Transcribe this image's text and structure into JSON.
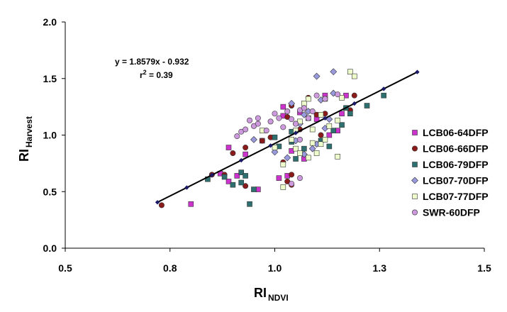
{
  "chart_data": {
    "type": "scatter",
    "xlabel": {
      "main": "RI",
      "sub": "NDVI"
    },
    "ylabel": {
      "main": "RI",
      "sub": "Harvest"
    },
    "xlim": [
      0.5,
      1.5
    ],
    "ylim": [
      0.0,
      2.0
    ],
    "x_ticks": [
      "0.5",
      "0.8",
      "1.0",
      "1.3",
      "1.5"
    ],
    "x_tick_values": [
      0.5,
      0.75,
      1.0,
      1.25,
      1.5
    ],
    "y_ticks": [
      "0.0",
      "0.5",
      "1.0",
      "1.5",
      "2.0"
    ],
    "y_tick_values": [
      0.0,
      0.5,
      1.0,
      1.5,
      2.0
    ],
    "grid": false,
    "legend_position": "right",
    "annotations": {
      "equation": "y = 1.8579x - 0.932",
      "r2_prefix": "r",
      "r2_sup": "2",
      "r2_suffix": " = 0.39"
    },
    "trendline": {
      "slope": 1.8579,
      "intercept": -0.932,
      "x_range": [
        0.72,
        1.34
      ],
      "markers_x": [
        0.72,
        0.79,
        0.85,
        0.92,
        0.99,
        1.05,
        1.12,
        1.19,
        1.26,
        1.34
      ]
    },
    "series": [
      {
        "name": "LCB06-64DFP",
        "color": "#cc33cc",
        "marker": "square",
        "points": [
          [
            0.8,
            0.39
          ],
          [
            0.87,
            0.66
          ],
          [
            0.89,
            0.89
          ],
          [
            0.89,
            0.59
          ],
          [
            0.91,
            0.64
          ],
          [
            0.93,
            0.83
          ],
          [
            0.96,
            0.52
          ],
          [
            0.97,
            0.95
          ],
          [
            1.01,
            0.62
          ],
          [
            1.02,
            1.17
          ],
          [
            1.02,
            1.25
          ],
          [
            1.03,
            0.64
          ],
          [
            1.04,
            0.86
          ],
          [
            1.06,
            1.2
          ],
          [
            1.07,
            0.79
          ],
          [
            1.1,
            1.14
          ],
          [
            1.12,
            1.35
          ],
          [
            1.13,
            1.0
          ],
          [
            1.15,
            1.04
          ],
          [
            1.16,
            1.19
          ],
          [
            1.17,
            1.35
          ]
        ]
      },
      {
        "name": "LCB06-66DFP",
        "color": "#8b1a1a",
        "marker": "circle",
        "points": [
          [
            0.73,
            0.38
          ],
          [
            0.85,
            0.65
          ],
          [
            0.88,
            0.65
          ],
          [
            0.9,
            0.84
          ],
          [
            0.93,
            0.55
          ],
          [
            0.93,
            0.89
          ],
          [
            0.97,
            0.95
          ],
          [
            0.99,
            0.98
          ],
          [
            1.02,
            0.76
          ],
          [
            1.03,
            1.16
          ],
          [
            1.03,
            0.59
          ],
          [
            1.04,
            0.65
          ],
          [
            1.04,
            1.26
          ],
          [
            1.04,
            0.56
          ],
          [
            1.05,
            1.1
          ],
          [
            1.06,
            1.05
          ],
          [
            1.08,
            1.33
          ],
          [
            1.1,
            1.18
          ],
          [
            1.11,
            1.0
          ],
          [
            1.12,
            1.19
          ],
          [
            1.18,
            1.22
          ],
          [
            1.19,
            1.35
          ]
        ]
      },
      {
        "name": "LCB06-79DFP",
        "color": "#2e6f6f",
        "marker": "square",
        "points": [
          [
            0.84,
            0.61
          ],
          [
            0.88,
            0.63
          ],
          [
            0.9,
            0.56
          ],
          [
            0.92,
            0.67
          ],
          [
            0.92,
            0.58
          ],
          [
            0.93,
            0.64
          ],
          [
            0.94,
            0.39
          ],
          [
            0.95,
            0.52
          ],
          [
            1.0,
            0.98
          ],
          [
            1.01,
            0.9
          ],
          [
            1.04,
            1.03
          ],
          [
            1.04,
            0.94
          ],
          [
            1.05,
            0.79
          ],
          [
            1.07,
            0.88
          ],
          [
            1.08,
            1.15
          ],
          [
            1.11,
            0.95
          ],
          [
            1.13,
            0.9
          ],
          [
            1.14,
            1.04
          ],
          [
            1.16,
            1.09
          ],
          [
            1.17,
            1.24
          ],
          [
            1.18,
            1.19
          ],
          [
            1.22,
            1.26
          ],
          [
            1.26,
            1.35
          ]
        ]
      },
      {
        "name": "LCB07-70DFP",
        "color": "#9999dd",
        "marker": "diamond",
        "points": [
          [
            0.95,
            0.96
          ],
          [
            1.0,
            0.85
          ],
          [
            1.03,
            0.8
          ],
          [
            1.04,
            1.28
          ],
          [
            1.05,
            0.95
          ],
          [
            1.06,
            1.1
          ],
          [
            1.07,
            0.83
          ],
          [
            1.07,
            1.18
          ],
          [
            1.08,
            1.21
          ],
          [
            1.09,
            0.88
          ],
          [
            1.1,
            1.52
          ],
          [
            1.1,
            0.92
          ],
          [
            1.11,
            1.31
          ],
          [
            1.12,
            1.06
          ],
          [
            1.13,
            1.14
          ],
          [
            1.14,
            1.56
          ],
          [
            1.14,
            1.37
          ]
        ]
      },
      {
        "name": "LCB07-77DFP",
        "color": "#eeffcc",
        "marker": "square",
        "points": [
          [
            0.97,
            1.04
          ],
          [
            1.0,
            0.89
          ],
          [
            1.02,
            0.74
          ],
          [
            1.02,
            0.54
          ],
          [
            1.04,
            0.96
          ],
          [
            1.05,
            0.88
          ],
          [
            1.05,
            1.04
          ],
          [
            1.06,
            1.12
          ],
          [
            1.06,
            0.84
          ],
          [
            1.07,
            1.28
          ],
          [
            1.08,
            0.8
          ],
          [
            1.08,
            1.32
          ],
          [
            1.09,
            1.05
          ],
          [
            1.09,
            0.93
          ],
          [
            1.1,
            0.84
          ],
          [
            1.11,
            0.92
          ],
          [
            1.11,
            1.18
          ],
          [
            1.12,
            1.32
          ],
          [
            1.12,
            0.96
          ],
          [
            1.13,
            1.08
          ],
          [
            1.15,
            0.81
          ],
          [
            1.15,
            1.13
          ],
          [
            1.16,
            1.33
          ],
          [
            1.18,
            1.56
          ],
          [
            1.19,
            1.52
          ]
        ]
      },
      {
        "name": "SWR-60DFP",
        "color": "#cc99dd",
        "marker": "circle",
        "points": [
          [
            0.91,
            0.99
          ],
          [
            0.92,
            1.03
          ],
          [
            0.93,
            1.05
          ],
          [
            0.94,
            1.13
          ],
          [
            0.95,
            1.08
          ],
          [
            0.96,
            1.1
          ],
          [
            0.96,
            1.15
          ],
          [
            0.98,
            1.04
          ],
          [
            0.99,
            1.12
          ],
          [
            1.0,
            1.19
          ],
          [
            1.01,
            1.15
          ],
          [
            1.02,
            1.07
          ],
          [
            1.03,
            1.21
          ],
          [
            1.04,
            1.14
          ],
          [
            1.05,
            1.1
          ],
          [
            1.06,
            1.22
          ],
          [
            1.06,
            0.96
          ],
          [
            1.07,
            1.24
          ],
          [
            1.08,
            1.15
          ],
          [
            1.09,
            1.21
          ],
          [
            1.1,
            1.35
          ],
          [
            1.12,
            1.32
          ],
          [
            1.15,
            1.36
          ],
          [
            1.04,
            0.57
          ],
          [
            1.06,
            0.62
          ]
        ]
      }
    ]
  }
}
